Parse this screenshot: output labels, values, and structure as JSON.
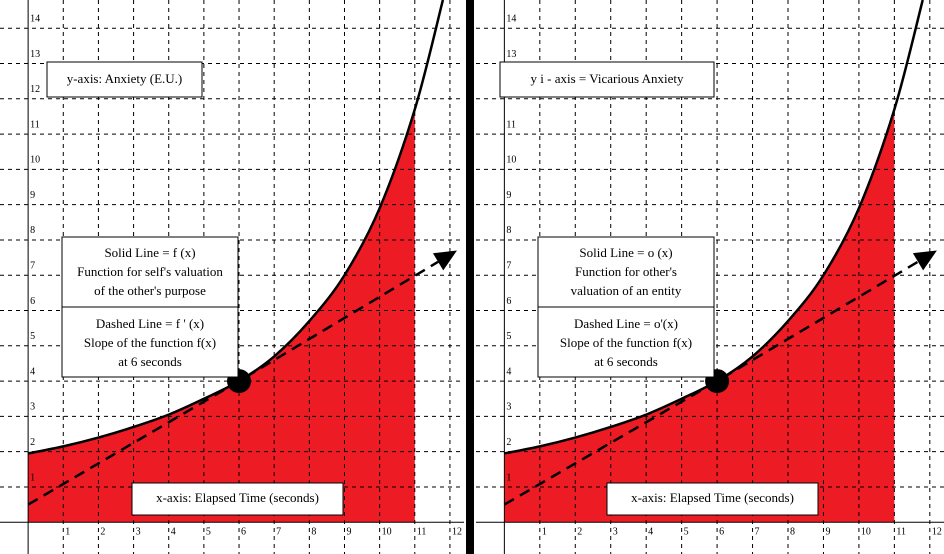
{
  "chart_data": [
    {
      "type": "line",
      "xlim": [
        -0.8,
        12.4
      ],
      "ylim": [
        -0.9,
        14.8
      ],
      "xticks": [
        1,
        2,
        3,
        4,
        5,
        6,
        7,
        8,
        9,
        10,
        11,
        12
      ],
      "yticks": [
        1,
        2,
        3,
        4,
        5,
        6,
        7,
        8,
        9,
        10,
        11,
        12,
        13,
        14
      ],
      "grid": true,
      "series": [
        {
          "style": "area",
          "color": "#ed1c24",
          "x": [
            0,
            1,
            2,
            3,
            4,
            5,
            6,
            7,
            8,
            9,
            10,
            11
          ],
          "values": [
            1.95,
            2.15,
            2.4,
            2.7,
            3.05,
            3.5,
            4.0,
            4.7,
            5.7,
            7.0,
            8.9,
            11.7
          ]
        },
        {
          "style": "solid",
          "color": "#000000",
          "x": [
            0,
            1,
            2,
            3,
            4,
            5,
            6,
            7,
            8,
            9,
            10,
            11,
            11.8
          ],
          "values": [
            1.95,
            2.15,
            2.4,
            2.7,
            3.05,
            3.5,
            4.0,
            4.7,
            5.7,
            7.0,
            8.9,
            11.7,
            14.8
          ]
        },
        {
          "style": "dashed",
          "color": "#000000",
          "x": [
            0,
            6,
            12.2
          ],
          "values": [
            0.5,
            4.0,
            7.7
          ]
        }
      ],
      "point": {
        "x": 6,
        "y": 4.0
      },
      "annotations": [
        [
          "y-axis: Anxiety (E.U.)"
        ],
        [
          "Solid Line = f (x)",
          "Function for self's valuation",
          "of the other's purpose"
        ],
        [
          "Dashed Line = f ' (x)",
          "Slope of the function f(x)",
          "at  6   seconds"
        ],
        [
          "x-axis: Elapsed Time (seconds)"
        ]
      ]
    },
    {
      "type": "line",
      "xlim": [
        -0.8,
        12.4
      ],
      "ylim": [
        -0.9,
        14.8
      ],
      "xticks": [
        1,
        2,
        3,
        4,
        5,
        6,
        7,
        8,
        9,
        10,
        11,
        12
      ],
      "yticks": [
        1,
        2,
        3,
        4,
        5,
        6,
        7,
        8,
        9,
        10,
        11,
        12,
        13,
        14
      ],
      "grid": true,
      "series": [
        {
          "style": "area",
          "color": "#ed1c24",
          "x": [
            0,
            1,
            2,
            3,
            4,
            5,
            6,
            7,
            8,
            9,
            10,
            11
          ],
          "values": [
            1.95,
            2.15,
            2.4,
            2.7,
            3.05,
            3.5,
            4.0,
            4.7,
            5.7,
            7.0,
            8.9,
            11.7
          ]
        },
        {
          "style": "solid",
          "color": "#000000",
          "x": [
            0,
            1,
            2,
            3,
            4,
            5,
            6,
            7,
            8,
            9,
            10,
            11,
            11.8
          ],
          "values": [
            1.95,
            2.15,
            2.4,
            2.7,
            3.05,
            3.5,
            4.0,
            4.7,
            5.7,
            7.0,
            8.9,
            11.7,
            14.8
          ]
        },
        {
          "style": "dashed",
          "color": "#000000",
          "x": [
            0,
            6,
            12.2
          ],
          "values": [
            0.5,
            4.0,
            7.7
          ]
        }
      ],
      "point": {
        "x": 6,
        "y": 4.0
      },
      "annotations": [
        [
          "y i - axis = Vicarious Anxiety"
        ],
        [
          "Solid Line = o (x)",
          "Function for other's",
          "valuation of an entity"
        ],
        [
          "Dashed Line =  o'(x)",
          "Slope of the function f(x)",
          "at  6   seconds"
        ],
        [
          "x-axis: Elapsed Time (seconds)"
        ]
      ]
    }
  ]
}
